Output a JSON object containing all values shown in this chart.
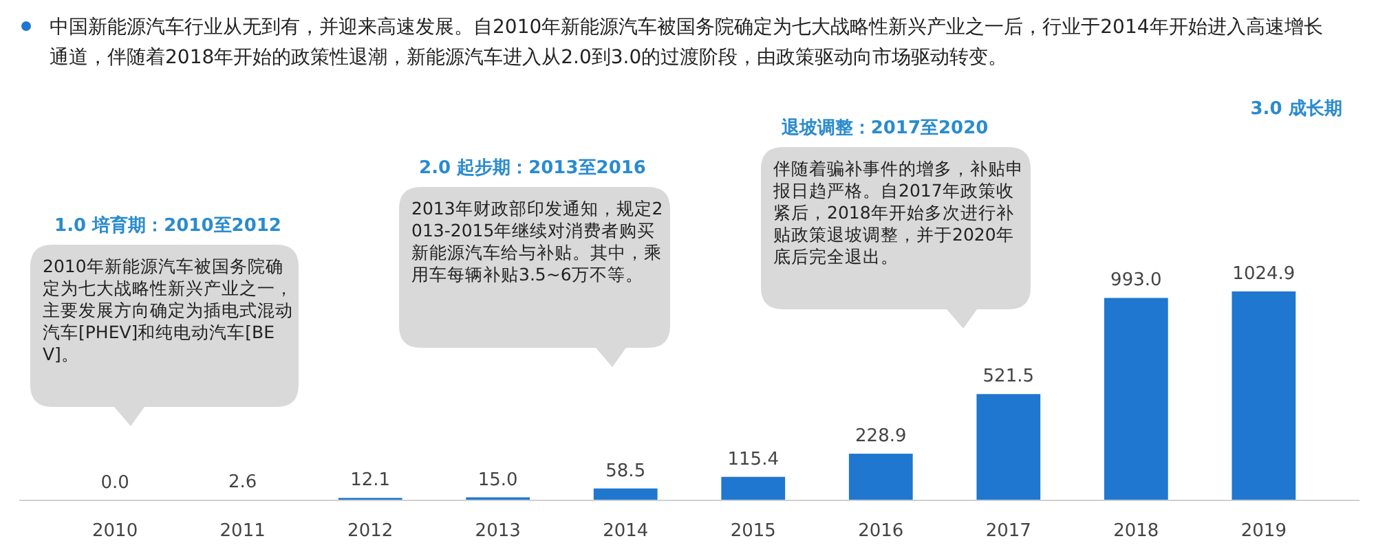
{
  "chart_data": {
    "type": "bar",
    "title": "中国新能源汽车行业从无到有，并迎来高速发展。自2010年新能源汽车被国务院确定为七大战略性新兴产业之一后，行业于2014年开始进入高速增长通道，伴随着2018年开始的政策性退潮，新能源汽车进入从2.0到3.0的过渡阶段，由政策驱动向市场驱动转变。",
    "categories": [
      "2010",
      "2011",
      "2012",
      "2013",
      "2014",
      "2015",
      "2016",
      "2017",
      "2018",
      "2019"
    ],
    "values": [
      0.0,
      2.6,
      12.1,
      15.0,
      58.5,
      115.4,
      228.9,
      521.5,
      993.0,
      1024.9
    ],
    "color": "#1f77d0",
    "value_labels": [
      "0.0",
      "2.6",
      "12.1",
      "15.0",
      "58.5",
      "115.4",
      "228.9",
      "521.5",
      "993.0",
      "1024.9"
    ],
    "annotations": [
      "1.0 培育期：2010至2012",
      "2010年新能源汽车被国务院确定为七大战略性新兴产业之一，主要发展方向确定为插电式混动汽车[PHEV]和纯电动汽车[BEV]。",
      "2.0 起步期：2013至2016",
      "2013年财政部印发通知，规定2013-2015年继续对消费者购买新能源汽车给与补贴。其中，乘用车每辆补贴3.5~6万不等。",
      "退坡调整：2017至2020",
      "伴随着骗补事件的增多，补贴申报日趋严格。自2017年政策收紧后，2018年开始多次进行补贴政策退坡调整，并于2020年底后完全退出。",
      "3.0 成长期"
    ]
  }
}
